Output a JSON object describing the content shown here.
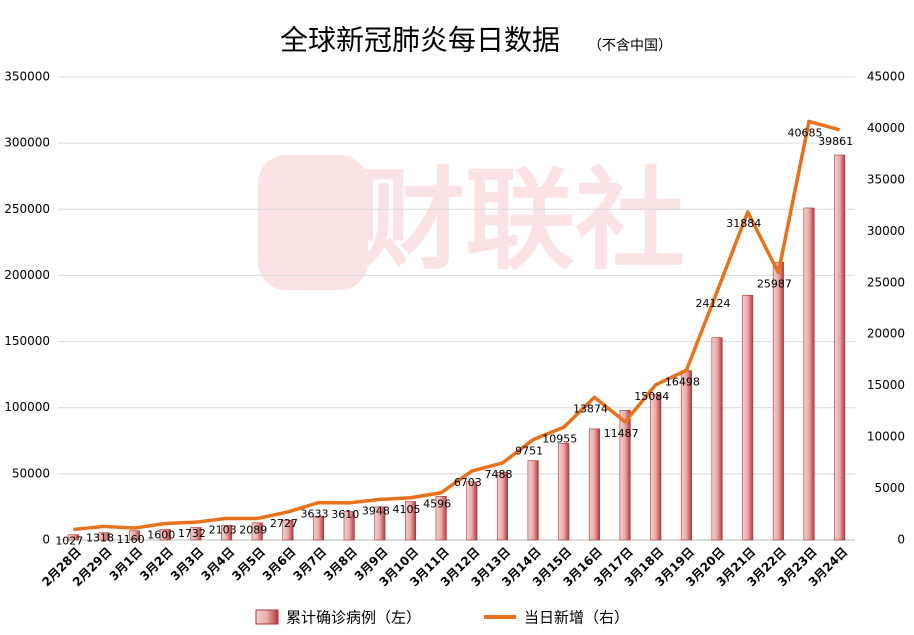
{
  "chart_data": {
    "type": "bar-line",
    "title": "全球新冠肺炎每日数据",
    "subtitle": "（不含中国）",
    "watermark": "财联社",
    "categories": [
      "2月28日",
      "2月29日",
      "3月1日",
      "3月2日",
      "3月3日",
      "3月4日",
      "3月5日",
      "3月6日",
      "3月7日",
      "3月8日",
      "3月9日",
      "3月10日",
      "3月11日",
      "3月12日",
      "3月13日",
      "3月14日",
      "3月15日",
      "3月16日",
      "3月17日",
      "3月18日",
      "3月19日",
      "3月20日",
      "3月21日",
      "3月22日",
      "3月23日",
      "3月24日"
    ],
    "series": [
      {
        "name": "累计确诊病例（左）",
        "type": "bar",
        "color": "#c0504d",
        "axis": "y",
        "values": [
          4000,
          5500,
          7000,
          8000,
          9500,
          11000,
          13000,
          15000,
          18000,
          21500,
          25000,
          29000,
          33000,
          44000,
          51000,
          60000,
          73000,
          84000,
          98000,
          110000,
          128000,
          153000,
          185000,
          210000,
          251000,
          291000
        ]
      },
      {
        "name": "当日新增（右）",
        "type": "line",
        "color": "#e8711c",
        "axis": "y2",
        "values": [
          1027,
          1318,
          1160,
          1600,
          1732,
          2103,
          2089,
          2727,
          3633,
          3610,
          3948,
          4105,
          4596,
          6703,
          7488,
          9751,
          10955,
          13874,
          11487,
          15084,
          16498,
          24124,
          31884,
          25987,
          40685,
          39861
        ]
      }
    ],
    "ylim": [
      0,
      350000
    ],
    "yticks": [
      0,
      50000,
      100000,
      150000,
      200000,
      250000,
      300000,
      350000
    ],
    "y2lim": [
      0,
      45000
    ],
    "y2ticks": [
      0,
      5000,
      10000,
      15000,
      20000,
      25000,
      30000,
      35000,
      40000,
      45000
    ],
    "grid": true,
    "legend": "bottom"
  }
}
